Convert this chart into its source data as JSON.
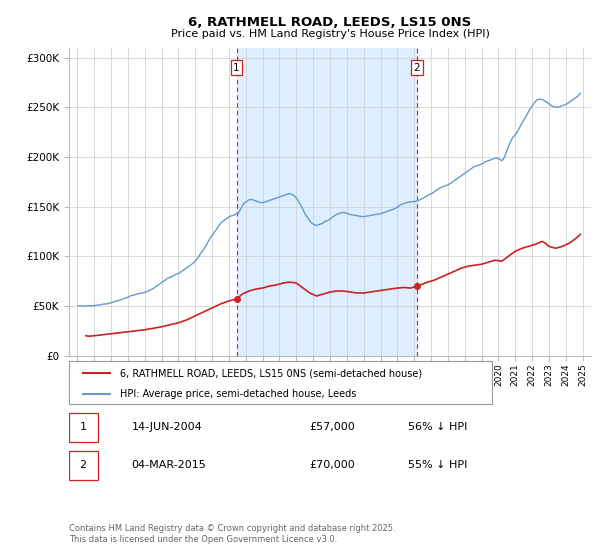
{
  "title": "6, RATHMELL ROAD, LEEDS, LS15 0NS",
  "subtitle": "Price paid vs. HM Land Registry's House Price Index (HPI)",
  "background_color": "#ffffff",
  "plot_bg_color": "#ffffff",
  "grid_color": "#cccccc",
  "ylim": [
    0,
    310000
  ],
  "yticks": [
    0,
    50000,
    100000,
    150000,
    200000,
    250000,
    300000
  ],
  "ytick_labels": [
    "£0",
    "£50K",
    "£100K",
    "£150K",
    "£200K",
    "£250K",
    "£300K"
  ],
  "hpi_color": "#6699cc",
  "price_color": "#cc2222",
  "marker_color": "#cc2222",
  "shade_color": "#ddeeff",
  "vline_color": "#cc2222",
  "annotation1_date": 2004.45,
  "annotation1_price": 57000,
  "annotation2_date": 2015.17,
  "annotation2_price": 70000,
  "legend_label1": "6, RATHMELL ROAD, LEEDS, LS15 0NS (semi-detached house)",
  "legend_label2": "HPI: Average price, semi-detached house, Leeds",
  "footer_text": "Contains HM Land Registry data © Crown copyright and database right 2025.\nThis data is licensed under the Open Government Licence v3.0.",
  "table_rows": [
    {
      "num": "1",
      "date": "14-JUN-2004",
      "price": "£57,000",
      "hpi": "56% ↓ HPI"
    },
    {
      "num": "2",
      "date": "04-MAR-2015",
      "price": "£70,000",
      "hpi": "55% ↓ HPI"
    }
  ],
  "xlim": [
    1994.5,
    2025.5
  ],
  "hpi_data": [
    [
      1995.04,
      50000
    ],
    [
      1995.21,
      50200
    ],
    [
      1995.37,
      49800
    ],
    [
      1995.54,
      50100
    ],
    [
      1995.71,
      50300
    ],
    [
      1995.87,
      50100
    ],
    [
      1996.04,
      50500
    ],
    [
      1996.21,
      51000
    ],
    [
      1996.37,
      51200
    ],
    [
      1996.54,
      51800
    ],
    [
      1996.71,
      52000
    ],
    [
      1996.87,
      52500
    ],
    [
      1997.04,
      53500
    ],
    [
      1997.21,
      54500
    ],
    [
      1997.37,
      55000
    ],
    [
      1997.54,
      56000
    ],
    [
      1997.71,
      57000
    ],
    [
      1997.87,
      58000
    ],
    [
      1998.04,
      59000
    ],
    [
      1998.21,
      60500
    ],
    [
      1998.37,
      61000
    ],
    [
      1998.54,
      62000
    ],
    [
      1998.71,
      62500
    ],
    [
      1998.87,
      63000
    ],
    [
      1999.04,
      64000
    ],
    [
      1999.21,
      65000
    ],
    [
      1999.37,
      66500
    ],
    [
      1999.54,
      68000
    ],
    [
      1999.71,
      70000
    ],
    [
      1999.87,
      72000
    ],
    [
      2000.04,
      74000
    ],
    [
      2000.21,
      76000
    ],
    [
      2000.37,
      78000
    ],
    [
      2000.54,
      79000
    ],
    [
      2000.71,
      80500
    ],
    [
      2000.87,
      82000
    ],
    [
      2001.04,
      83000
    ],
    [
      2001.21,
      85000
    ],
    [
      2001.37,
      87000
    ],
    [
      2001.54,
      89000
    ],
    [
      2001.71,
      91000
    ],
    [
      2001.87,
      93000
    ],
    [
      2002.04,
      96000
    ],
    [
      2002.21,
      100000
    ],
    [
      2002.37,
      104000
    ],
    [
      2002.54,
      108000
    ],
    [
      2002.71,
      113000
    ],
    [
      2002.87,
      118000
    ],
    [
      2003.04,
      122000
    ],
    [
      2003.21,
      126000
    ],
    [
      2003.37,
      130000
    ],
    [
      2003.54,
      134000
    ],
    [
      2003.71,
      136000
    ],
    [
      2003.87,
      138000
    ],
    [
      2004.04,
      140000
    ],
    [
      2004.21,
      141000
    ],
    [
      2004.37,
      142000
    ],
    [
      2004.54,
      143000
    ],
    [
      2004.71,
      148000
    ],
    [
      2004.87,
      153000
    ],
    [
      2005.04,
      155000
    ],
    [
      2005.21,
      157000
    ],
    [
      2005.37,
      157000
    ],
    [
      2005.54,
      156000
    ],
    [
      2005.71,
      155000
    ],
    [
      2005.87,
      154000
    ],
    [
      2006.04,
      154000
    ],
    [
      2006.21,
      155000
    ],
    [
      2006.37,
      156000
    ],
    [
      2006.54,
      157000
    ],
    [
      2006.71,
      158000
    ],
    [
      2006.87,
      159000
    ],
    [
      2007.04,
      160000
    ],
    [
      2007.21,
      161000
    ],
    [
      2007.37,
      162000
    ],
    [
      2007.54,
      163000
    ],
    [
      2007.71,
      162500
    ],
    [
      2007.87,
      161000
    ],
    [
      2008.04,
      158000
    ],
    [
      2008.21,
      153000
    ],
    [
      2008.37,
      148000
    ],
    [
      2008.54,
      142000
    ],
    [
      2008.71,
      138000
    ],
    [
      2008.87,
      134000
    ],
    [
      2009.04,
      132000
    ],
    [
      2009.21,
      131000
    ],
    [
      2009.37,
      132000
    ],
    [
      2009.54,
      133000
    ],
    [
      2009.71,
      135000
    ],
    [
      2009.87,
      136000
    ],
    [
      2010.04,
      138000
    ],
    [
      2010.21,
      140000
    ],
    [
      2010.37,
      142000
    ],
    [
      2010.54,
      143000
    ],
    [
      2010.71,
      144000
    ],
    [
      2010.87,
      144000
    ],
    [
      2011.04,
      143000
    ],
    [
      2011.21,
      142000
    ],
    [
      2011.37,
      141500
    ],
    [
      2011.54,
      141000
    ],
    [
      2011.71,
      140500
    ],
    [
      2011.87,
      140000
    ],
    [
      2012.04,
      140000
    ],
    [
      2012.21,
      140500
    ],
    [
      2012.37,
      141000
    ],
    [
      2012.54,
      141500
    ],
    [
      2012.71,
      142000
    ],
    [
      2012.87,
      142500
    ],
    [
      2013.04,
      143000
    ],
    [
      2013.21,
      144000
    ],
    [
      2013.37,
      145000
    ],
    [
      2013.54,
      146000
    ],
    [
      2013.71,
      147000
    ],
    [
      2013.87,
      148000
    ],
    [
      2014.04,
      150000
    ],
    [
      2014.21,
      152000
    ],
    [
      2014.37,
      153000
    ],
    [
      2014.54,
      154000
    ],
    [
      2014.71,
      154500
    ],
    [
      2014.87,
      155000
    ],
    [
      2015.04,
      155000
    ],
    [
      2015.21,
      156000
    ],
    [
      2015.37,
      157000
    ],
    [
      2015.54,
      158500
    ],
    [
      2015.71,
      160000
    ],
    [
      2015.87,
      162000
    ],
    [
      2016.04,
      163000
    ],
    [
      2016.21,
      165000
    ],
    [
      2016.37,
      167000
    ],
    [
      2016.54,
      169000
    ],
    [
      2016.71,
      170000
    ],
    [
      2016.87,
      171000
    ],
    [
      2017.04,
      172000
    ],
    [
      2017.21,
      174000
    ],
    [
      2017.37,
      176000
    ],
    [
      2017.54,
      178000
    ],
    [
      2017.71,
      180000
    ],
    [
      2017.87,
      182000
    ],
    [
      2018.04,
      184000
    ],
    [
      2018.21,
      186000
    ],
    [
      2018.37,
      188000
    ],
    [
      2018.54,
      190000
    ],
    [
      2018.71,
      191000
    ],
    [
      2018.87,
      192000
    ],
    [
      2019.04,
      193000
    ],
    [
      2019.21,
      195000
    ],
    [
      2019.37,
      196000
    ],
    [
      2019.54,
      197000
    ],
    [
      2019.71,
      198000
    ],
    [
      2019.87,
      199000
    ],
    [
      2020.04,
      198000
    ],
    [
      2020.21,
      196000
    ],
    [
      2020.37,
      200000
    ],
    [
      2020.54,
      208000
    ],
    [
      2020.71,
      215000
    ],
    [
      2020.87,
      220000
    ],
    [
      2021.04,
      223000
    ],
    [
      2021.21,
      228000
    ],
    [
      2021.37,
      233000
    ],
    [
      2021.54,
      238000
    ],
    [
      2021.71,
      243000
    ],
    [
      2021.87,
      248000
    ],
    [
      2022.04,
      252000
    ],
    [
      2022.21,
      256000
    ],
    [
      2022.37,
      258000
    ],
    [
      2022.54,
      258000
    ],
    [
      2022.71,
      257000
    ],
    [
      2022.87,
      255000
    ],
    [
      2023.04,
      253000
    ],
    [
      2023.21,
      251000
    ],
    [
      2023.37,
      250000
    ],
    [
      2023.54,
      250000
    ],
    [
      2023.71,
      251000
    ],
    [
      2023.87,
      252000
    ],
    [
      2024.04,
      253000
    ],
    [
      2024.21,
      255000
    ],
    [
      2024.37,
      257000
    ],
    [
      2024.54,
      259000
    ],
    [
      2024.71,
      261000
    ],
    [
      2024.87,
      264000
    ]
  ],
  "price_data": [
    [
      1995.5,
      20000
    ],
    [
      1995.7,
      19500
    ],
    [
      1996.0,
      20000
    ],
    [
      1996.5,
      21000
    ],
    [
      1997.0,
      22000
    ],
    [
      1997.5,
      23000
    ],
    [
      1998.0,
      24000
    ],
    [
      1998.5,
      25000
    ],
    [
      1999.0,
      26000
    ],
    [
      1999.5,
      27500
    ],
    [
      2000.0,
      29000
    ],
    [
      2000.5,
      31000
    ],
    [
      2001.0,
      33000
    ],
    [
      2001.5,
      36000
    ],
    [
      2002.0,
      40000
    ],
    [
      2002.5,
      44000
    ],
    [
      2003.0,
      48000
    ],
    [
      2003.5,
      52000
    ],
    [
      2004.0,
      55000
    ],
    [
      2004.45,
      57000
    ],
    [
      2004.8,
      62000
    ],
    [
      2005.2,
      65000
    ],
    [
      2005.6,
      67000
    ],
    [
      2006.0,
      68000
    ],
    [
      2006.4,
      70000
    ],
    [
      2006.8,
      71000
    ],
    [
      2007.2,
      73000
    ],
    [
      2007.6,
      74000
    ],
    [
      2008.0,
      73000
    ],
    [
      2008.4,
      68000
    ],
    [
      2008.8,
      63000
    ],
    [
      2009.2,
      60000
    ],
    [
      2009.6,
      62000
    ],
    [
      2010.0,
      64000
    ],
    [
      2010.4,
      65000
    ],
    [
      2010.8,
      65000
    ],
    [
      2011.2,
      64000
    ],
    [
      2011.6,
      63000
    ],
    [
      2012.0,
      63000
    ],
    [
      2012.4,
      64000
    ],
    [
      2012.8,
      65000
    ],
    [
      2013.2,
      66000
    ],
    [
      2013.6,
      67000
    ],
    [
      2014.0,
      68000
    ],
    [
      2014.4,
      68500
    ],
    [
      2014.8,
      68000
    ],
    [
      2015.17,
      70000
    ],
    [
      2015.5,
      72000
    ],
    [
      2015.8,
      74000
    ],
    [
      2016.2,
      76000
    ],
    [
      2016.6,
      79000
    ],
    [
      2017.0,
      82000
    ],
    [
      2017.4,
      85000
    ],
    [
      2017.8,
      88000
    ],
    [
      2018.2,
      90000
    ],
    [
      2018.6,
      91000
    ],
    [
      2019.0,
      92000
    ],
    [
      2019.4,
      94000
    ],
    [
      2019.8,
      96000
    ],
    [
      2020.2,
      95000
    ],
    [
      2020.6,
      100000
    ],
    [
      2021.0,
      105000
    ],
    [
      2021.4,
      108000
    ],
    [
      2021.8,
      110000
    ],
    [
      2022.2,
      112000
    ],
    [
      2022.6,
      115000
    ],
    [
      2022.8,
      113000
    ],
    [
      2023.0,
      110000
    ],
    [
      2023.4,
      108000
    ],
    [
      2023.8,
      110000
    ],
    [
      2024.2,
      113000
    ],
    [
      2024.6,
      118000
    ],
    [
      2024.87,
      122000
    ]
  ]
}
